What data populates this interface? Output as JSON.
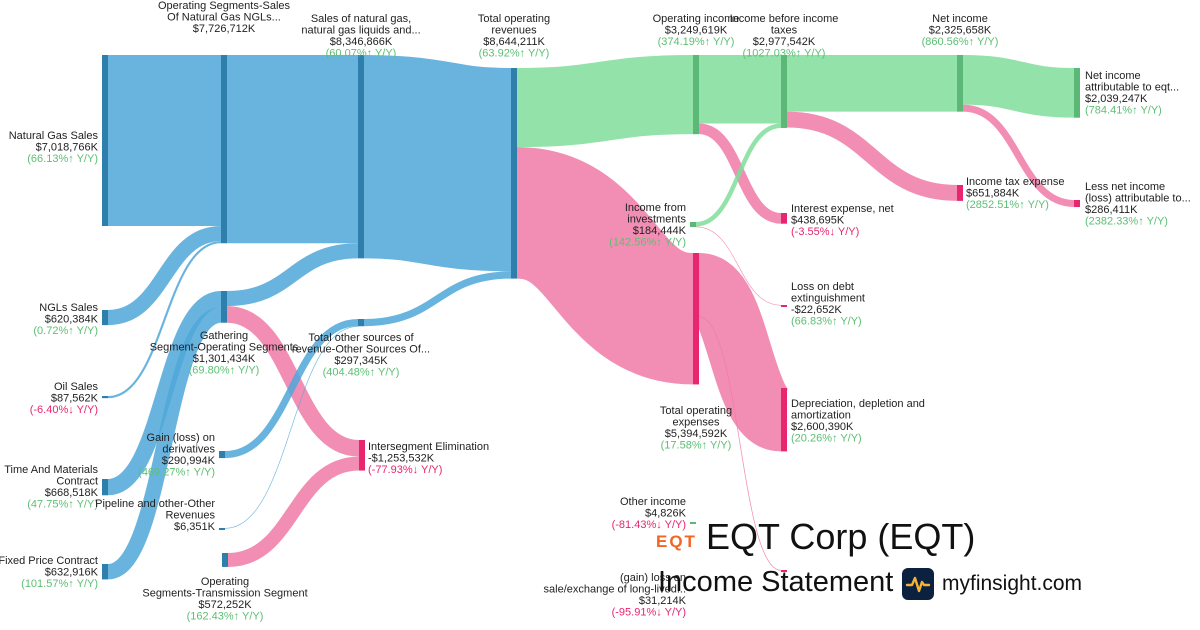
{
  "chart_data": {
    "type": "sankey",
    "currency_unit": "K",
    "colors": {
      "revenue": "#4fa7d9",
      "profit": "#7fdd9a",
      "expense": "#f07aa6",
      "revenue_node": "#2f7fad",
      "profit_node": "#5cb877",
      "expense_node": "#e8256f",
      "growth_text": "#5cbf73",
      "decline_text": "#e8256f"
    },
    "nodes": [
      {
        "id": "natural_gas_sales",
        "label": [
          "Natural Gas Sales"
        ],
        "value": "$7,018,766K",
        "change": "(66.13%↑ Y/Y)",
        "dir": "up",
        "kind": "revenue"
      },
      {
        "id": "ngls_sales",
        "label": [
          "NGLs Sales"
        ],
        "value": "$620,384K",
        "change": "(0.72%↑ Y/Y)",
        "dir": "up",
        "kind": "revenue"
      },
      {
        "id": "oil_sales",
        "label": [
          "Oil Sales"
        ],
        "value": "$87,562K",
        "change": "(-6.40%↓ Y/Y)",
        "dir": "down",
        "kind": "revenue"
      },
      {
        "id": "time_materials",
        "label": [
          "Time And Materials",
          "Contract"
        ],
        "value": "$668,518K",
        "change": "(47.75%↑ Y/Y)",
        "dir": "up",
        "kind": "revenue"
      },
      {
        "id": "fixed_price",
        "label": [
          "Fixed Price Contract"
        ],
        "value": "$632,916K",
        "change": "(101.57%↑ Y/Y)",
        "dir": "up",
        "kind": "revenue"
      },
      {
        "id": "op_segments_sales",
        "label": [
          "Operating Segments-Sales",
          "Of Natural Gas NGLs..."
        ],
        "value": "$7,726,712K",
        "change": "",
        "dir": "up",
        "kind": "revenue"
      },
      {
        "id": "gathering",
        "label": [
          "Gathering",
          "Segment-Operating Segments"
        ],
        "value": "$1,301,434K",
        "change": "(69.80%↑ Y/Y)",
        "dir": "up",
        "kind": "revenue"
      },
      {
        "id": "gain_derivatives",
        "label": [
          "Gain (loss) on",
          "derivatives"
        ],
        "value": "$290,994K",
        "change": "(469.27%↑ Y/Y)",
        "dir": "up",
        "kind": "revenue"
      },
      {
        "id": "pipeline_other",
        "label": [
          "Pipeline and other-Other",
          "Revenues"
        ],
        "value": "$6,351K",
        "change": "",
        "dir": "up",
        "kind": "revenue"
      },
      {
        "id": "transmission",
        "label": [
          "Operating",
          "Segments-Transmission Segment"
        ],
        "value": "$572,252K",
        "change": "(162.43%↑ Y/Y)",
        "dir": "up",
        "kind": "revenue"
      },
      {
        "id": "sales_ng_ngl",
        "label": [
          "Sales of natural gas,",
          "natural gas liquids and..."
        ],
        "value": "$8,346,866K",
        "change": "(60.07%↑ Y/Y)",
        "dir": "up",
        "kind": "revenue"
      },
      {
        "id": "total_other_sources",
        "label": [
          "Total other sources of",
          "revenue-Other Sources Of..."
        ],
        "value": "$297,345K",
        "change": "(404.48%↑ Y/Y)",
        "dir": "up",
        "kind": "revenue"
      },
      {
        "id": "intersegment",
        "label": [
          "Intersegment Elimination"
        ],
        "value": "-$1,253,532K",
        "change": "(-77.93%↓ Y/Y)",
        "dir": "down",
        "kind": "expense"
      },
      {
        "id": "total_revenues",
        "label": [
          "Total operating",
          "revenues"
        ],
        "value": "$8,644,211K",
        "change": "(63.92%↑ Y/Y)",
        "dir": "up",
        "kind": "revenue"
      },
      {
        "id": "operating_income",
        "label": [
          "Operating income"
        ],
        "value": "$3,249,619K",
        "change": "(374.19%↑ Y/Y)",
        "dir": "up",
        "kind": "profit"
      },
      {
        "id": "total_op_expenses",
        "label": [
          "Total operating",
          "expenses"
        ],
        "value": "$5,394,592K",
        "change": "(17.58%↑ Y/Y)",
        "dir": "up",
        "kind": "expense"
      },
      {
        "id": "income_investments",
        "label": [
          "Income from",
          "investments"
        ],
        "value": "$184,444K",
        "change": "(142.56%↑ Y/Y)",
        "dir": "up",
        "kind": "profit"
      },
      {
        "id": "other_income",
        "label": [
          "Other income"
        ],
        "value": "$4,826K",
        "change": "(-81.43%↓ Y/Y)",
        "dir": "down",
        "kind": "profit"
      },
      {
        "id": "income_before_taxes",
        "label": [
          "Income before income",
          "taxes"
        ],
        "value": "$2,977,542K",
        "change": "(1027.03%↑ Y/Y)",
        "dir": "up",
        "kind": "profit"
      },
      {
        "id": "interest_expense",
        "label": [
          "Interest expense, net"
        ],
        "value": "$438,695K",
        "change": "(-3.55%↓ Y/Y)",
        "dir": "down",
        "kind": "expense"
      },
      {
        "id": "loss_debt",
        "label": [
          "Loss on debt",
          "extinguishment"
        ],
        "value": "-$22,652K",
        "change": "(66.83%↑ Y/Y)",
        "dir": "up",
        "kind": "expense"
      },
      {
        "id": "dda",
        "label": [
          "Depreciation, depletion and",
          "amortization"
        ],
        "value": "$2,600,390K",
        "change": "(20.26%↑ Y/Y)",
        "dir": "up",
        "kind": "expense"
      },
      {
        "id": "gain_sale",
        "label": [
          "(gain) loss on",
          "sale/exchange of long-lived..."
        ],
        "value": "$31,214K",
        "change": "(-95.91%↓ Y/Y)",
        "dir": "down",
        "kind": "expense"
      },
      {
        "id": "net_income",
        "label": [
          "Net income"
        ],
        "value": "$2,325,658K",
        "change": "(860.56%↑ Y/Y)",
        "dir": "up",
        "kind": "profit"
      },
      {
        "id": "income_tax",
        "label": [
          "Income tax expense"
        ],
        "value": "$651,884K",
        "change": "(2852.51%↑ Y/Y)",
        "dir": "up",
        "kind": "expense"
      },
      {
        "id": "net_income_eqt",
        "label": [
          "Net income",
          "attributable to eqt..."
        ],
        "value": "$2,039,247K",
        "change": "(784.41%↑ Y/Y)",
        "dir": "up",
        "kind": "profit"
      },
      {
        "id": "less_nci",
        "label": [
          "Less net income",
          "(loss) attributable to..."
        ],
        "value": "$286,411K",
        "change": "(2382.33%↑ Y/Y)",
        "dir": "up",
        "kind": "expense"
      }
    ],
    "links": [
      {
        "source": "natural_gas_sales",
        "target": "op_segments_sales",
        "value": 7018766
      },
      {
        "source": "ngls_sales",
        "target": "op_segments_sales",
        "value": 620384
      },
      {
        "source": "oil_sales",
        "target": "op_segments_sales",
        "value": 87562
      },
      {
        "source": "time_materials",
        "target": "gathering",
        "value": 668518
      },
      {
        "source": "fixed_price",
        "target": "gathering",
        "value": 632916
      },
      {
        "source": "op_segments_sales",
        "target": "sales_ng_ngl",
        "value": 7726712
      },
      {
        "source": "gathering",
        "target": "sales_ng_ngl",
        "value": 620154
      },
      {
        "source": "gathering",
        "target": "intersegment",
        "value": 681280
      },
      {
        "source": "transmission",
        "target": "intersegment",
        "value": 572252
      },
      {
        "source": "gain_derivatives",
        "target": "total_other_sources",
        "value": 290994
      },
      {
        "source": "pipeline_other",
        "target": "total_other_sources",
        "value": 6351
      },
      {
        "source": "sales_ng_ngl",
        "target": "total_revenues",
        "value": 8346866
      },
      {
        "source": "total_other_sources",
        "target": "total_revenues",
        "value": 297345
      },
      {
        "source": "total_revenues",
        "target": "operating_income",
        "value": 3249619
      },
      {
        "source": "total_revenues",
        "target": "total_op_expenses",
        "value": 5394592
      },
      {
        "source": "operating_income",
        "target": "income_before_taxes",
        "value": 2810924
      },
      {
        "source": "operating_income",
        "target": "interest_expense",
        "value": 438695
      },
      {
        "source": "income_investments",
        "target": "income_before_taxes",
        "value": 184444
      },
      {
        "source": "income_investments",
        "target": "loss_debt",
        "value": 22652
      },
      {
        "source": "total_op_expenses",
        "target": "dda",
        "value": 2600390
      },
      {
        "source": "total_op_expenses",
        "target": "gain_sale",
        "value": 31214
      },
      {
        "source": "income_before_taxes",
        "target": "net_income",
        "value": 2325658
      },
      {
        "source": "income_before_taxes",
        "target": "income_tax",
        "value": 651884
      },
      {
        "source": "net_income",
        "target": "net_income_eqt",
        "value": 2039247
      },
      {
        "source": "net_income",
        "target": "less_nci",
        "value": 286411
      }
    ]
  },
  "branding": {
    "logo_text": "EQT",
    "company": "EQT Corp (EQT)",
    "statement": "Income Statement",
    "site": "myfinsight.com"
  }
}
